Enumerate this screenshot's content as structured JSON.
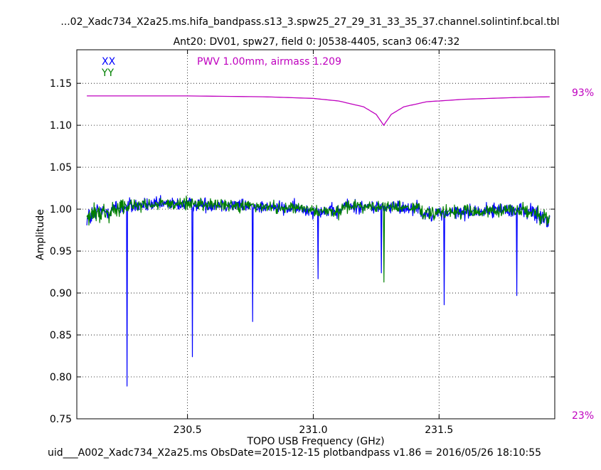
{
  "header": {
    "filename": "...02_Xadc734_X2a25.ms.hifa_bandpass.s13_3.spw25_27_29_31_33_35_37.channel.solintinf.bcal.tbl",
    "subtitle": "Ant20: DV01,  spw27,  field 0: J0538-4405,  scan3  06:47:32"
  },
  "footer": {
    "text": "uid___A002_Xadc734_X2a25.ms  ObsDate=2015-12-15   plotbandpass v1.86 = 2016/05/26 18:10:55"
  },
  "annotation": {
    "pwv": "PWV 1.00mm, airmass 1.209",
    "right_top": "93%",
    "right_bottom": "23%"
  },
  "colors": {
    "xx": "#0000ff",
    "yy": "#008000",
    "atm": "#bf00bf",
    "grid": "#000000"
  },
  "chart_data": {
    "type": "line",
    "title": "Ant20: DV01,  spw27,  field 0: J0538-4405,  scan3  06:47:32",
    "xlabel": "TOPO USB Frequency (GHz)",
    "ylabel": "Amplitude",
    "xlim": [
      230.06,
      231.96
    ],
    "ylim": [
      0.75,
      1.19
    ],
    "xticks": [
      230.5,
      231.0,
      231.5
    ],
    "xtick_labels": [
      "230.5",
      "231.0",
      "231.5"
    ],
    "yticks": [
      0.75,
      0.8,
      0.85,
      0.9,
      0.95,
      1.0,
      1.05,
      1.1,
      1.15
    ],
    "ytick_labels": [
      "0.75",
      "0.80",
      "0.85",
      "0.90",
      "0.95",
      "1.00",
      "1.05",
      "1.10",
      "1.15"
    ],
    "grid": true,
    "legend_position": "top-left",
    "legend": [
      "XX",
      "YY"
    ],
    "secondary_axis": {
      "labels": [
        "93%",
        "23%"
      ],
      "range_percent": [
        23,
        93
      ]
    },
    "series": [
      {
        "name": "XX",
        "color": "#0000ff",
        "x_range": [
          230.1,
          231.94
        ],
        "baseline": 1.0,
        "spikes": [
          {
            "x": 230.26,
            "y": 0.789
          },
          {
            "x": 230.52,
            "y": 0.824
          },
          {
            "x": 230.76,
            "y": 0.866
          },
          {
            "x": 231.02,
            "y": 0.917
          },
          {
            "x": 231.27,
            "y": 0.924
          },
          {
            "x": 231.52,
            "y": 0.886
          },
          {
            "x": 231.81,
            "y": 0.897
          }
        ],
        "max": 1.065
      },
      {
        "name": "YY",
        "color": "#008000",
        "x_range": [
          230.1,
          231.94
        ],
        "baseline": 1.0,
        "spikes": [
          {
            "x": 231.28,
            "y": 0.913
          }
        ],
        "max": 1.055
      },
      {
        "name": "atmosphere",
        "color": "#bf00bf",
        "x": [
          230.1,
          230.5,
          230.8,
          231.0,
          231.1,
          231.2,
          231.25,
          231.28,
          231.31,
          231.36,
          231.45,
          231.6,
          231.8,
          231.94
        ],
        "y": [
          1.135,
          1.135,
          1.134,
          1.132,
          1.129,
          1.122,
          1.113,
          1.1,
          1.113,
          1.122,
          1.128,
          1.131,
          1.133,
          1.134
        ]
      }
    ]
  }
}
